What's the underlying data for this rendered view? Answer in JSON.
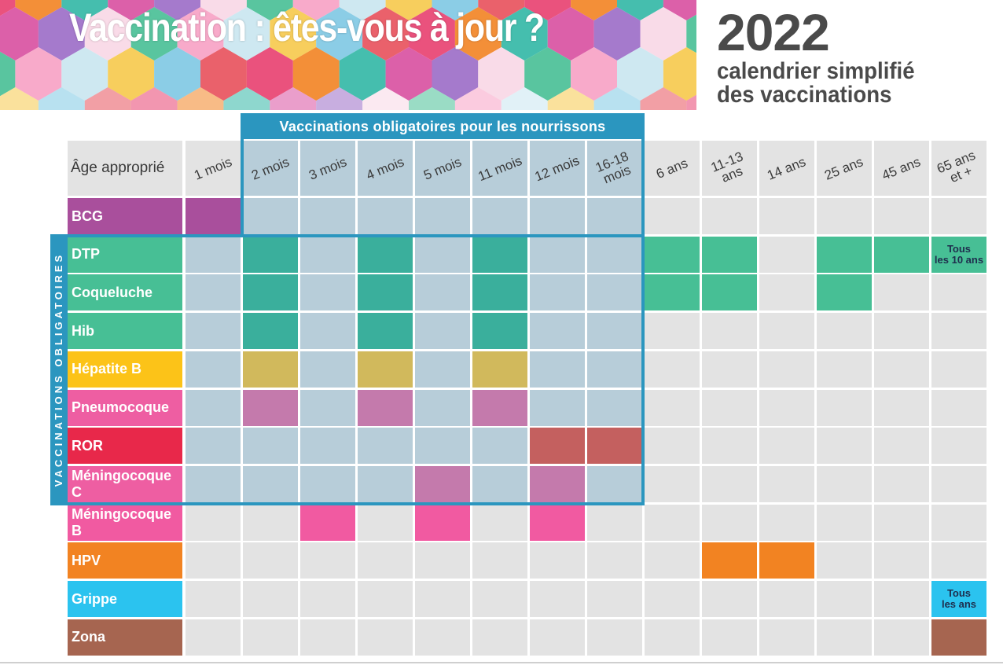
{
  "header": {
    "title": "Vaccination : êtes-vous à jour ?",
    "year": "2022",
    "subtitle_line1": "calendrier simplifié",
    "subtitle_line2": "des vaccinations"
  },
  "obligatory_banner": "Vaccinations obligatoires pour les nourrissons",
  "side_label": "VACCINATIONS OBLIGATOIRES",
  "colors": {
    "frame": "#2b96bf",
    "empty": "#e3e3e3",
    "infant_zone": "#b7cdd9"
  },
  "table": {
    "age_header": "Âge approprié",
    "ages": [
      "1 mois",
      "2 mois",
      "3 mois",
      "4 mois",
      "5 mois",
      "11 mois",
      "12 mois",
      "16-18\nmois",
      "6 ans",
      "11-13\nans",
      "14 ans",
      "25 ans",
      "45 ans",
      "65 ans\net +"
    ],
    "rows": [
      {
        "name": "BCG",
        "color": "#a94f9c",
        "zone_color": "#a94f9c",
        "cells": [
          0
        ]
      },
      {
        "name": "DTP",
        "color": "#47bf95",
        "zone_color": "#3aaf9c",
        "cells": [
          1,
          3,
          5,
          8,
          9,
          11,
          12,
          13
        ],
        "note_col": 13,
        "note": "Tous\nles 10 ans"
      },
      {
        "name": "Coqueluche",
        "color": "#47bf95",
        "zone_color": "#3aaf9c",
        "cells": [
          1,
          3,
          5,
          8,
          9,
          11
        ]
      },
      {
        "name": "Hib",
        "color": "#47bf95",
        "zone_color": "#3aaf9c",
        "cells": [
          1,
          3,
          5
        ]
      },
      {
        "name": "Hépatite B",
        "color": "#fcc318",
        "zone_color": "#d1b95c",
        "cells": [
          1,
          3,
          5
        ]
      },
      {
        "name": "Pneumocoque",
        "color": "#ee5ea2",
        "zone_color": "#c47aac",
        "cells": [
          1,
          3,
          5
        ]
      },
      {
        "name": "ROR",
        "color": "#e8284a",
        "zone_color": "#c4605f",
        "cells": [
          6,
          7
        ]
      },
      {
        "name": "Méningocoque C",
        "color": "#ee5ea2",
        "zone_color": "#c47aac",
        "cells": [
          4,
          6
        ]
      },
      {
        "name": "Méningocoque B",
        "color": "#f15aa1",
        "zone_color": "#f15aa1",
        "cells": [
          2,
          4,
          6
        ]
      },
      {
        "name": "HPV",
        "color": "#f28322",
        "zone_color": "#f28322",
        "cells": [
          9,
          10
        ]
      },
      {
        "name": "Grippe",
        "color": "#2bc3ef",
        "zone_color": "#2bc3ef",
        "cells": [
          13
        ],
        "note_col": 13,
        "note": "Tous\nles ans"
      },
      {
        "name": "Zona",
        "color": "#a66550",
        "zone_color": "#a66550",
        "cells": [
          13
        ]
      }
    ]
  }
}
